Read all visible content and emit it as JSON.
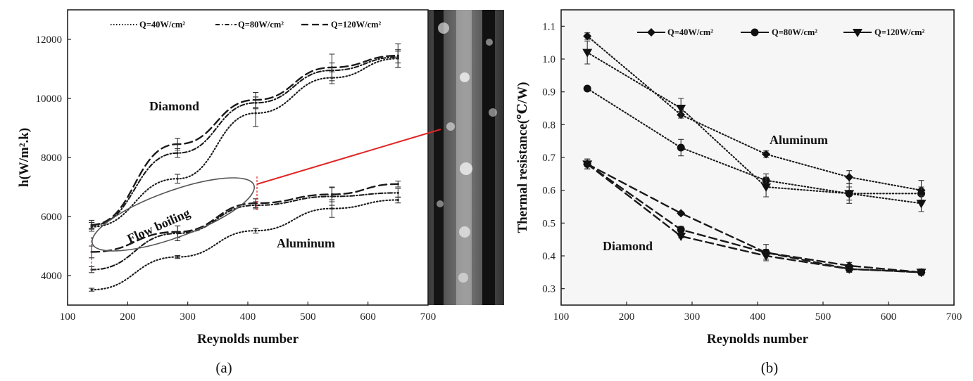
{
  "colors": {
    "axis": "#222222",
    "line": "#1a1a1a",
    "arrow": "#e02424",
    "ellipse": "#555555"
  },
  "chart_data": [
    {
      "id": "a",
      "type": "line",
      "caption": "(a)",
      "xlabel": "Reynolds number",
      "ylabel": "h(W/m².k)",
      "xlim": [
        100,
        700
      ],
      "ylim": [
        3000,
        13000
      ],
      "xticks": [
        100,
        200,
        300,
        400,
        500,
        600,
        700
      ],
      "yticks": [
        4000,
        6000,
        8000,
        10000,
        12000
      ],
      "legend": {
        "position": "top",
        "labels": [
          "Q=40W/cm²",
          "Q=80W/cm²",
          "Q=120W/cm²"
        ]
      },
      "annotations": [
        "Diamond",
        "Aluminum",
        "Flow boiling"
      ],
      "series": [
        {
          "name": "Diamond Q=40W/cm²",
          "style": "dotted",
          "x": [
            140,
            283,
            413,
            540,
            650
          ],
          "values": [
            5650,
            7280,
            9500,
            10700,
            11350
          ],
          "err": [
            150,
            150,
            450,
            200,
            300
          ]
        },
        {
          "name": "Diamond Q=80W/cm²",
          "style": "dashdot",
          "x": [
            140,
            283,
            413,
            540,
            650
          ],
          "values": [
            5700,
            8150,
            9850,
            10950,
            11400
          ],
          "err": [
            100,
            150,
            200,
            250,
            200
          ]
        },
        {
          "name": "Diamond Q=120W/cm²",
          "style": "dashed",
          "x": [
            140,
            283,
            413,
            540,
            650
          ],
          "values": [
            5720,
            8450,
            9950,
            11050,
            11450
          ],
          "err": [
            150,
            200,
            250,
            450,
            400
          ]
        },
        {
          "name": "Aluminum Q=40W/cm²",
          "style": "dotted",
          "x": [
            140,
            283,
            413,
            540,
            650
          ],
          "values": [
            3520,
            4630,
            5520,
            6270,
            6560
          ],
          "err": [
            50,
            50,
            80,
            300,
            100
          ]
        },
        {
          "name": "Aluminum Q=80W/cm²",
          "style": "dashdot",
          "x": [
            140,
            283,
            413,
            540,
            650
          ],
          "values": [
            4200,
            5430,
            6380,
            6680,
            6800
          ],
          "err": [
            100,
            250,
            120,
            300,
            150
          ]
        },
        {
          "name": "Aluminum Q=120W/cm²",
          "style": "dashed",
          "x": [
            140,
            283,
            413,
            540,
            650
          ],
          "values": [
            4800,
            5480,
            6450,
            6750,
            7100
          ],
          "err": [
            200,
            200,
            150,
            250,
            100
          ]
        }
      ]
    },
    {
      "id": "b",
      "type": "line",
      "caption": "(b)",
      "xlabel": "Reynolds number",
      "ylabel": "Thermal resistance(℃/W)",
      "xlim": [
        100,
        700
      ],
      "ylim": [
        0.25,
        1.15
      ],
      "xticks": [
        100,
        200,
        300,
        400,
        500,
        600,
        700
      ],
      "yticks": [
        0.3,
        0.4,
        0.5,
        0.6,
        0.7,
        0.8,
        0.9,
        1.0,
        1.1
      ],
      "legend": {
        "position": "top",
        "labels": [
          "Q=40W/cm²",
          "Q=80W/cm²",
          "Q=120W/cm²"
        ]
      },
      "annotations": [
        "Aluminum",
        "Diamond"
      ],
      "series": [
        {
          "name": "Aluminum Q=40W/cm²",
          "style": "dotted",
          "marker": "diamond",
          "x": [
            140,
            283,
            413,
            540,
            650
          ],
          "values": [
            1.07,
            0.83,
            0.71,
            0.64,
            0.6
          ],
          "err": [
            0.01,
            0.01,
            0.01,
            0.02,
            0.03
          ]
        },
        {
          "name": "Aluminum Q=80W/cm²",
          "style": "dotted",
          "marker": "circle",
          "x": [
            140,
            283,
            413,
            540,
            650
          ],
          "values": [
            0.91,
            0.73,
            0.63,
            0.59,
            0.59
          ],
          "err": [
            0.005,
            0.025,
            0.02,
            0.02,
            0.02
          ]
        },
        {
          "name": "Aluminum Q=120W/cm²",
          "style": "dotted",
          "marker": "triangle",
          "x": [
            140,
            283,
            413,
            540,
            650
          ],
          "values": [
            1.02,
            0.85,
            0.61,
            0.59,
            0.56
          ],
          "err": [
            0.035,
            0.03,
            0.03,
            0.03,
            0.025
          ]
        },
        {
          "name": "Diamond Q=40W/cm²",
          "style": "dashed",
          "marker": "diamond",
          "x": [
            140,
            283,
            413,
            540,
            650
          ],
          "values": [
            0.68,
            0.53,
            0.41,
            0.37,
            0.35
          ],
          "err": [
            0.015,
            0.005,
            0.025,
            0.01,
            0.01
          ]
        },
        {
          "name": "Diamond Q=80W/cm²",
          "style": "dashed",
          "marker": "circle",
          "x": [
            140,
            283,
            413,
            540,
            650
          ],
          "values": [
            0.68,
            0.48,
            0.41,
            0.36,
            0.35
          ],
          "err": [
            0.015,
            0.01,
            0.01,
            0.01,
            0.01
          ]
        },
        {
          "name": "Diamond Q=120W/cm²",
          "style": "dashed",
          "marker": "triangle",
          "x": [
            140,
            283,
            413,
            540,
            650
          ],
          "values": [
            0.68,
            0.46,
            0.4,
            0.36,
            0.35
          ],
          "err": [
            0.015,
            0.005,
            0.01,
            0.01,
            0.01
          ]
        }
      ]
    }
  ]
}
